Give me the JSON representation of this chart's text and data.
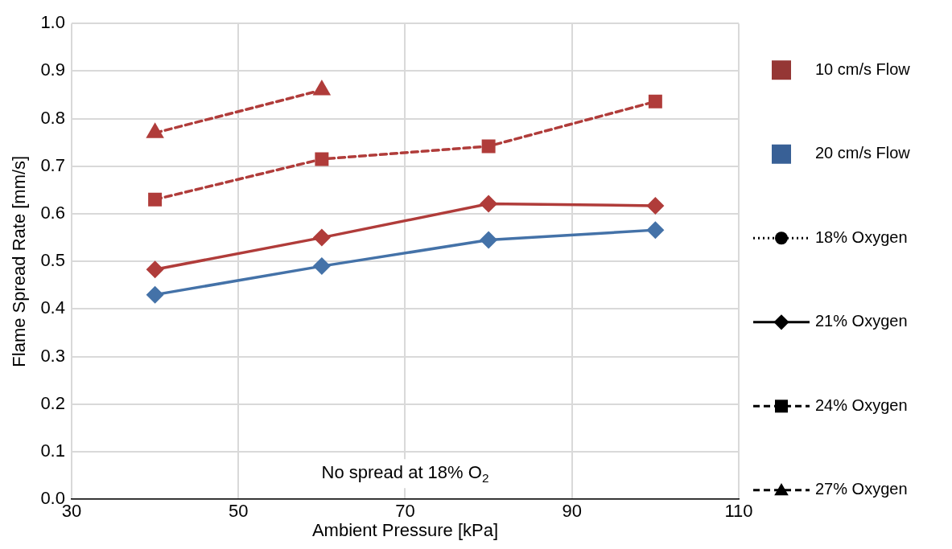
{
  "chart_data": {
    "type": "line",
    "xlabel": "Ambient Pressure [kPa]",
    "ylabel": "Flame Spread Rate [mm/s]",
    "x": [
      40,
      60,
      80,
      100
    ],
    "xlim": [
      30,
      110
    ],
    "xticks": [
      30,
      50,
      70,
      90,
      110
    ],
    "ylim": [
      0,
      1.0
    ],
    "yticks": [
      {
        "value": 0,
        "label": "0.0"
      },
      0.1,
      0.2,
      0.3,
      0.4,
      0.5,
      0.6,
      0.7,
      0.8,
      0.9,
      {
        "value": 1.0,
        "label": "1.0"
      }
    ],
    "grid": true,
    "legend": "right",
    "annotations": [
      "No spread at 18% O$_{2}$"
    ],
    "series": [
      {
        "color": "#b03c3a",
        "marker": "triangle",
        "line_style": "dashed",
        "values": [
          0.77,
          0.86,
          null,
          null
        ]
      },
      {
        "color": "#b03c3a",
        "marker": "square",
        "line_style": "dashed",
        "values": [
          0.63,
          0.715,
          0.742,
          0.836
        ]
      },
      {
        "color": "#b03c3a",
        "marker": "diamond",
        "line_style": "solid",
        "values": [
          0.483,
          0.55,
          0.621,
          0.617
        ]
      },
      {
        "color": "#4472a8",
        "marker": "diamond",
        "line_style": "solid",
        "values": [
          0.43,
          0.49,
          0.545,
          0.566
        ]
      },
      {
        "name": "10 cm/s Flow",
        "color": "#953735",
        "marker": "square",
        "values": [
          null,
          null,
          null,
          null
        ]
      },
      {
        "name": "20 cm/s Flow",
        "color": "#386096",
        "marker": "square",
        "values": [
          null,
          null,
          null,
          null
        ]
      },
      {
        "name": "18% Oxygen",
        "color": "#000000",
        "marker": "circle",
        "line_style": "dotted",
        "values": [
          null,
          null,
          null,
          null
        ]
      },
      {
        "name": "21% Oxygen",
        "color": "#000000",
        "marker": "diamond",
        "line_style": "solid",
        "values": [
          null,
          null,
          null,
          null
        ]
      },
      {
        "name": "24% Oxygen",
        "color": "#000000",
        "marker": "square",
        "line_style": "dashed",
        "values": [
          null,
          null,
          null,
          null
        ]
      },
      {
        "name": "27% Oxygen",
        "color": "#000000",
        "marker": "triangle",
        "line_style": "dashed",
        "values": [
          null,
          null,
          null,
          null
        ]
      }
    ]
  }
}
